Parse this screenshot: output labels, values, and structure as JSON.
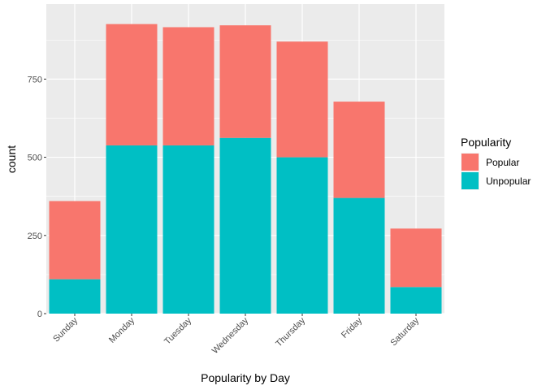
{
  "chart_data": {
    "type": "bar",
    "stacked": true,
    "title": "",
    "xlabel": "Popularity by Day",
    "ylabel": "count",
    "categories": [
      "Sunday",
      "Monday",
      "Tuesday",
      "Wednesday",
      "Thursday",
      "Friday",
      "Saturday"
    ],
    "series": [
      {
        "name": "Unpopular",
        "color": "#00BFC4",
        "values": [
          110,
          538,
          538,
          562,
          500,
          370,
          85
        ]
      },
      {
        "name": "Popular",
        "color": "#F8766D",
        "values": [
          250,
          388,
          378,
          360,
          370,
          308,
          187
        ]
      }
    ],
    "ylim": [
      0,
      990
    ],
    "yticks": [
      0,
      250,
      500,
      750
    ],
    "ytick_labels": [
      "0",
      "250",
      "500",
      "750"
    ],
    "grid": true,
    "panel_background": "#EBEBEB",
    "legend": {
      "title": "Popularity",
      "position": "right",
      "entries": [
        {
          "label": "Popular",
          "color": "#F8766D"
        },
        {
          "label": "Unpopular",
          "color": "#00BFC4"
        }
      ]
    }
  }
}
